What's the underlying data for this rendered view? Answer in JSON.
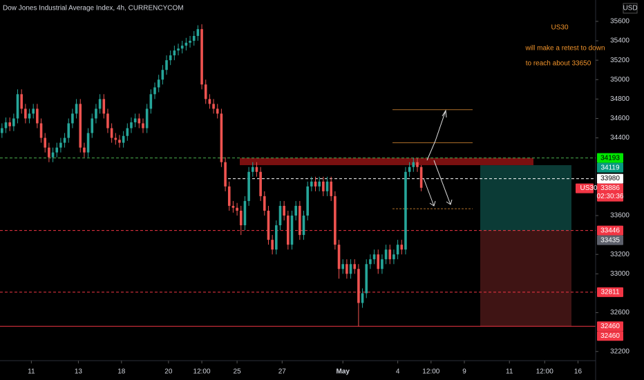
{
  "chart_data": {
    "type": "candlestick",
    "title": "Dow Jones Industrial Average Index, 4h, CURRENCYCOM",
    "currency": "USD",
    "symbol": "US30",
    "countdown": "02:30:36",
    "annotations": [
      "US30",
      "will make a retest to down",
      "to reach  about 33650"
    ],
    "up_color": "#26a69a",
    "down_color": "#ef5350",
    "grid": false,
    "xlim": [
      -0.5,
      151.5
    ],
    "xticks": [
      {
        "value": 7.5,
        "label": "11"
      },
      {
        "value": 19.5,
        "label": "13"
      },
      {
        "value": 30.5,
        "label": "18"
      },
      {
        "value": 42.5,
        "label": "20"
      },
      {
        "value": 51,
        "label": "12:00"
      },
      {
        "value": 60,
        "label": "25"
      },
      {
        "value": 71.5,
        "label": "27"
      },
      {
        "value": 87,
        "label": "May"
      },
      {
        "value": 101,
        "label": "4"
      },
      {
        "value": 109.5,
        "label": "12:00"
      },
      {
        "value": 118,
        "label": "9"
      },
      {
        "value": 129.5,
        "label": "11"
      },
      {
        "value": 138.5,
        "label": "12:00"
      },
      {
        "value": 147,
        "label": "16"
      }
    ],
    "ylim": [
      32120,
      35820
    ],
    "yticks": [
      35600,
      35400,
      35200,
      35000,
      34800,
      34600,
      34400,
      33600,
      33200,
      33000,
      32600,
      32200
    ],
    "open": [
      34450,
      34500,
      34560,
      34520,
      34600,
      34850,
      34700,
      34600,
      34650,
      34700,
      34550,
      34400,
      34300,
      34200,
      34250,
      34300,
      34350,
      34400,
      34550,
      34650,
      34750,
      34300,
      34250,
      34450,
      34600,
      34700,
      34800,
      34650,
      34500,
      34400,
      34380,
      34350,
      34420,
      34500,
      34560,
      34600,
      34550,
      34500,
      34700,
      34850,
      34920,
      35000,
      35100,
      35200,
      35250,
      35300,
      35320,
      35350,
      35380,
      35400,
      35450,
      35520,
      34950,
      34800,
      34750,
      34700,
      34650,
      34150,
      33900,
      33700,
      33680,
      33650,
      33500,
      33750,
      34050,
      34100,
      34050,
      33800,
      33650,
      33350,
      33250,
      33500,
      33700,
      33600,
      33300,
      33600,
      33700,
      33400,
      33600,
      33900,
      33950,
      33900,
      33950,
      33850,
      33950,
      33800,
      33300,
      33050,
      33100,
      33000,
      33100,
      33050,
      32700,
      32800,
      33100,
      33150,
      33200,
      33050,
      33150,
      33250,
      33150,
      33200,
      33300,
      33250,
      34050,
      34100,
      34150,
      34100
    ],
    "high": [
      34550,
      34610,
      34610,
      34650,
      34900,
      34900,
      34750,
      34700,
      34750,
      34750,
      34600,
      34450,
      34350,
      34300,
      34350,
      34400,
      34450,
      34600,
      34700,
      34800,
      34800,
      34350,
      34500,
      34650,
      34750,
      34850,
      34850,
      34700,
      34550,
      34450,
      34430,
      34470,
      34550,
      34610,
      34650,
      34650,
      34600,
      34750,
      34900,
      34970,
      35050,
      35150,
      35250,
      35300,
      35350,
      35370,
      35400,
      35430,
      35450,
      35500,
      35560,
      35570,
      35000,
      34850,
      34800,
      34750,
      34700,
      34200,
      33950,
      33750,
      33730,
      33700,
      33800,
      34100,
      34150,
      34150,
      34100,
      33850,
      33700,
      33400,
      33550,
      33750,
      33750,
      33650,
      33650,
      33750,
      33750,
      33650,
      33950,
      34000,
      34000,
      34000,
      34000,
      34000,
      34000,
      33850,
      33350,
      33150,
      33150,
      33150,
      33150,
      33100,
      32850,
      33150,
      33200,
      33250,
      33250,
      33200,
      33300,
      33300,
      33250,
      33350,
      33350,
      34100,
      34150,
      34193,
      34193,
      34119
    ],
    "low": [
      34400,
      34450,
      34470,
      34470,
      34550,
      34650,
      34550,
      34550,
      34600,
      34500,
      34350,
      34250,
      34150,
      34150,
      34200,
      34250,
      34300,
      34350,
      34500,
      34600,
      34250,
      34200,
      34200,
      34400,
      34550,
      34650,
      34600,
      34450,
      34350,
      34330,
      34300,
      34300,
      34370,
      34450,
      34510,
      34500,
      34450,
      34450,
      34650,
      34800,
      34870,
      34950,
      35050,
      35150,
      35200,
      35250,
      35270,
      35300,
      35330,
      35350,
      35400,
      34900,
      34750,
      34700,
      34650,
      34600,
      34100,
      33850,
      33650,
      33630,
      33600,
      33400,
      33450,
      33700,
      34000,
      34000,
      33750,
      33600,
      33300,
      33200,
      33200,
      33450,
      33550,
      33250,
      33250,
      33550,
      33350,
      33350,
      33550,
      33850,
      33850,
      33850,
      33800,
      33800,
      33750,
      33250,
      32950,
      33000,
      32950,
      32950,
      33000,
      32460,
      32650,
      32750,
      33050,
      33100,
      33000,
      33000,
      33100,
      33100,
      33100,
      33150,
      33200,
      33200,
      34000,
      34050,
      34050,
      33850
    ],
    "close": [
      34500,
      34560,
      34520,
      34600,
      34850,
      34700,
      34600,
      34650,
      34700,
      34550,
      34400,
      34300,
      34200,
      34250,
      34300,
      34350,
      34400,
      34550,
      34650,
      34750,
      34300,
      34250,
      34450,
      34600,
      34700,
      34800,
      34650,
      34500,
      34400,
      34380,
      34350,
      34420,
      34500,
      34560,
      34600,
      34550,
      34500,
      34700,
      34850,
      34920,
      35000,
      35100,
      35200,
      35250,
      35300,
      35320,
      35350,
      35380,
      35400,
      35450,
      35520,
      34950,
      34800,
      34750,
      34700,
      34650,
      34150,
      33900,
      33700,
      33680,
      33650,
      33500,
      33750,
      34050,
      34100,
      34050,
      33800,
      33650,
      33350,
      33250,
      33500,
      33700,
      33600,
      33300,
      33600,
      33700,
      33400,
      33600,
      33900,
      33950,
      33900,
      33950,
      33850,
      33950,
      33800,
      33300,
      33050,
      33100,
      33000,
      33100,
      33050,
      32700,
      32800,
      33100,
      33150,
      33200,
      33050,
      33150,
      33250,
      33150,
      33200,
      33300,
      33250,
      34050,
      34100,
      34150,
      34100,
      33886
    ],
    "levels": [
      {
        "value": 34193,
        "color": "#4caf50",
        "style": "dashed"
      },
      {
        "value": 33980,
        "color": "#ffffff",
        "style": "dashed"
      },
      {
        "value": 33446,
        "color": "#f23645",
        "style": "dashed"
      },
      {
        "value": 32811,
        "color": "#f23645",
        "style": "dashed"
      },
      {
        "value": 32460,
        "color": "#f23645",
        "style": "solid"
      }
    ],
    "zone": {
      "top": 34193,
      "bottom": 34119,
      "color": "#7a1010"
    },
    "position": {
      "top": 34119,
      "mid": 33446,
      "bottom": 32460,
      "profit_color": "#0b3b36",
      "loss_color": "#3f1414"
    },
    "drawing_lines": [
      {
        "value": 34690,
        "color": "#b0702a"
      },
      {
        "value": 34350,
        "color": "#b0702a"
      },
      {
        "value": 33670,
        "color": "#b0702a"
      }
    ],
    "price_labels": [
      {
        "value": 34193,
        "color": "#00e600",
        "text_color": "#000000"
      },
      {
        "value": 34119,
        "color": "#089981",
        "text_color": "#ffffff"
      },
      {
        "value": 33980,
        "color": "#ffffff",
        "text_color": "#000000"
      },
      {
        "value": 33886,
        "color": "#f23645",
        "text_color": "#ffffff"
      },
      {
        "value": 33446,
        "color": "#f23645",
        "text_color": "#ffffff"
      },
      {
        "value": 33435,
        "color": "#5d606b",
        "text_color": "#ffffff"
      },
      {
        "value": 32811,
        "color": "#f23645",
        "text_color": "#ffffff"
      },
      {
        "value": 32460,
        "color": "#f23645",
        "text_color": "#ffffff"
      },
      {
        "value": 32460,
        "color": "#f23645",
        "text_color": "#ffffff"
      }
    ]
  }
}
